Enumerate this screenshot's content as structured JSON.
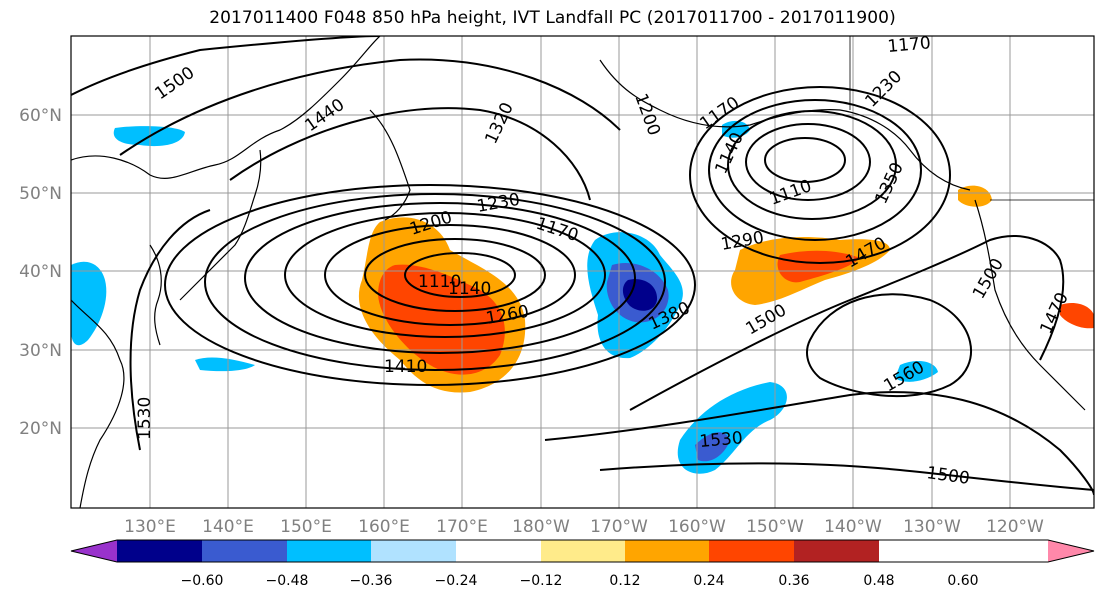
{
  "title": "2017011400 F048 850 hPa height, IVT Landfall PC (2017011700 - 2017011900)",
  "map": {
    "lat_ticks": [
      "60°N",
      "50°N",
      "40°N",
      "30°N",
      "20°N"
    ],
    "lon_ticks": [
      "130°E",
      "140°E",
      "150°E",
      "160°E",
      "170°E",
      "180°W",
      "170°W",
      "160°W",
      "150°W",
      "140°W",
      "130°W",
      "120°W"
    ],
    "contour_labels": [
      "1500",
      "1440",
      "1320",
      "1200",
      "1230",
      "1170",
      "1110",
      "1140",
      "1260",
      "1410",
      "1380",
      "1290",
      "1500",
      "1470",
      "1350",
      "1230",
      "1170",
      "1140",
      "1110",
      "1200",
      "1500",
      "1470",
      "1560",
      "1530",
      "1500",
      "1530",
      "1170"
    ]
  },
  "colorbar": {
    "tick_labels": [
      "−0.60",
      "−0.48",
      "−0.36",
      "−0.24",
      "−0.12",
      "0.12",
      "0.24",
      "0.36",
      "0.48",
      "0.60"
    ],
    "colors": [
      "#9932cc",
      "#00008b",
      "#3a5bd0",
      "#00bfff",
      "#b0e2ff",
      "#ffffff",
      "#ffeb8a",
      "#ffa500",
      "#ff4500",
      "#b22222",
      "#ff88aa"
    ]
  }
}
